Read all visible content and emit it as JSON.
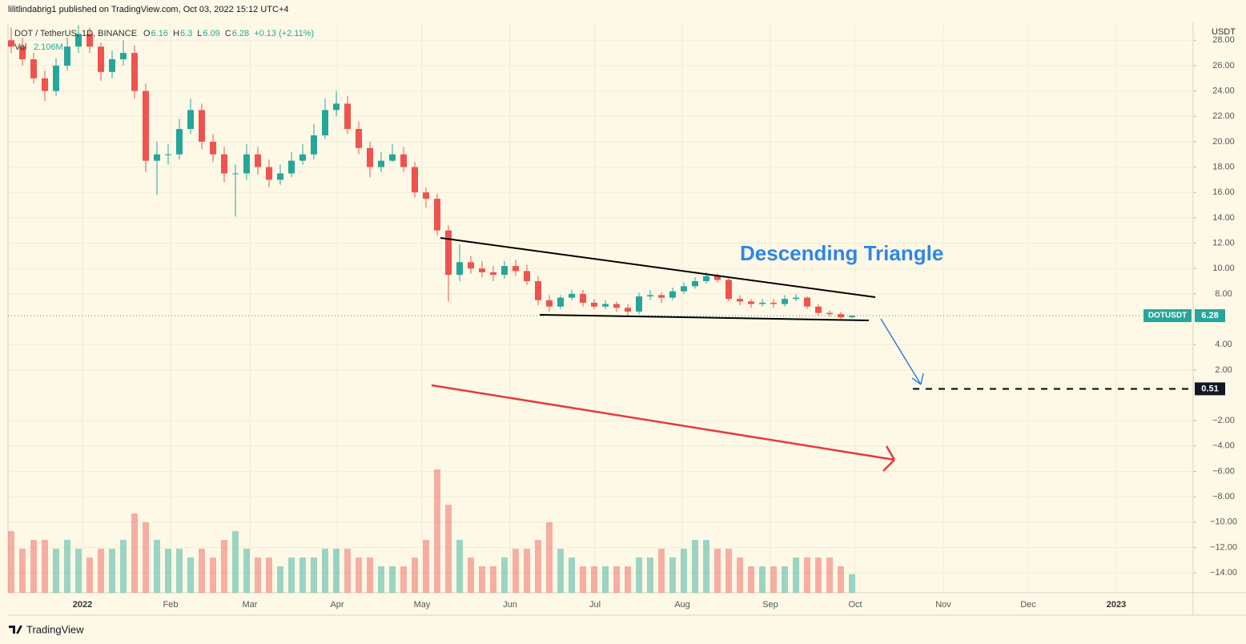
{
  "header": {
    "text": "lilitlindabrig1 published on TradingView.com, Oct 03, 2022 15:12 UTC+4"
  },
  "footer": {
    "logo": "TradingView"
  },
  "chart_data": {
    "type": "candlestick",
    "legend": {
      "symbol": "DOT / TetherUS, 1D, BINANCE",
      "letters": [
        "O",
        "H",
        "L",
        "C"
      ],
      "ohlc": [
        6.16,
        6.3,
        6.09,
        6.28
      ],
      "change": "+0.13 (+2.11%)",
      "volume_title": "Vol",
      "volume_label": "2.106M"
    },
    "axis_unit": "USDT",
    "annotation": "Descending Triangle",
    "last_price": {
      "symbol": "DOTUSDT",
      "value": 6.28
    },
    "target": 0.51,
    "up_color": "#26a69a",
    "down_color": "#ef5350",
    "x_labels": [
      "2022",
      "Feb",
      "Mar",
      "Apr",
      "May",
      "Jun",
      "Jul",
      "Aug",
      "Sep",
      "Oct",
      "Nov",
      "Dec",
      "2023"
    ],
    "ylim": [
      -15.57,
      29.28
    ],
    "yticks": [
      {
        "value": 28,
        "label": "28.00"
      },
      {
        "value": 26,
        "label": "26.00"
      },
      {
        "value": 24,
        "label": "24.00"
      },
      {
        "value": 22,
        "label": "22.00"
      },
      {
        "value": 20,
        "label": "20.00"
      },
      {
        "value": 18,
        "label": "18.00"
      },
      {
        "value": 16,
        "label": "16.00"
      },
      {
        "value": 14,
        "label": "14.00"
      },
      {
        "value": 12,
        "label": "12.00"
      },
      {
        "value": 10,
        "label": "10.00"
      },
      {
        "value": 8,
        "label": "8.00"
      },
      {
        "value": 4,
        "label": "4.00"
      },
      {
        "value": 2,
        "label": "2.00"
      },
      {
        "value": -2,
        "label": "−2.00"
      },
      {
        "value": -4,
        "label": "−4.00"
      },
      {
        "value": -6,
        "label": "−6.00"
      },
      {
        "value": -8,
        "label": "−8.00"
      },
      {
        "value": -10,
        "label": "−10.00"
      },
      {
        "value": -12,
        "label": "−12.00"
      },
      {
        "value": -14,
        "label": "−14.00"
      }
    ],
    "open": [
      28.0,
      27.5,
      26.5,
      25.0,
      24.0,
      26.0,
      27.5,
      28.5,
      27.5,
      25.5,
      26.5,
      27.0,
      24.0,
      18.5,
      19.0,
      19.0,
      21.0,
      22.5,
      20.0,
      19.0,
      17.5,
      17.5,
      19.0,
      18.0,
      17.0,
      17.5,
      18.5,
      19.0,
      20.5,
      22.5,
      23.0,
      21.0,
      19.5,
      18.0,
      18.5,
      19.0,
      18.0,
      16.0,
      15.5,
      13.0,
      9.5,
      10.5,
      10.0,
      9.7,
      9.5,
      10.2,
      9.8,
      9.0,
      7.5,
      7.0,
      7.7,
      8.0,
      7.3,
      7.0,
      7.2,
      6.9,
      6.6,
      7.8,
      7.9,
      7.7,
      8.2,
      8.6,
      9.0,
      9.4,
      9.1,
      7.6,
      7.4,
      7.2,
      7.3,
      7.2,
      7.6,
      7.7,
      7.0,
      6.5,
      6.4,
      6.16
    ],
    "high": [
      29.0,
      28.2,
      27.0,
      25.6,
      26.6,
      28.2,
      29.2,
      29.0,
      27.8,
      27.2,
      28.0,
      27.6,
      24.6,
      20.0,
      19.8,
      21.8,
      23.4,
      23.0,
      20.6,
      19.6,
      18.2,
      19.8,
      19.6,
      18.6,
      18.2,
      19.2,
      19.8,
      21.4,
      23.4,
      24.0,
      23.6,
      21.6,
      20.0,
      19.2,
      19.8,
      19.6,
      18.4,
      16.4,
      15.9,
      13.4,
      11.9,
      11.0,
      10.6,
      10.2,
      10.6,
      10.7,
      10.3,
      9.4,
      7.9,
      7.9,
      8.3,
      8.3,
      7.6,
      7.5,
      7.4,
      7.2,
      8.1,
      8.3,
      8.1,
      8.5,
      8.9,
      9.3,
      9.7,
      9.6,
      9.3,
      7.9,
      7.6,
      7.6,
      7.6,
      7.9,
      8.0,
      7.8,
      7.2,
      6.7,
      6.6,
      6.3
    ],
    "low": [
      27.0,
      26.0,
      24.6,
      23.2,
      23.6,
      25.6,
      27.0,
      27.0,
      24.8,
      25.0,
      26.0,
      23.4,
      17.6,
      15.8,
      18.2,
      18.6,
      20.6,
      19.4,
      18.4,
      16.8,
      14.1,
      17.0,
      17.4,
      16.4,
      16.6,
      17.2,
      18.2,
      18.6,
      20.2,
      22.0,
      20.6,
      19.0,
      17.2,
      17.6,
      18.4,
      17.6,
      15.6,
      14.8,
      12.6,
      7.4,
      9.0,
      9.6,
      9.3,
      9.0,
      9.2,
      9.4,
      8.7,
      7.1,
      6.6,
      6.8,
      7.5,
      7.0,
      6.8,
      6.8,
      6.6,
      6.2,
      6.4,
      7.5,
      7.3,
      7.5,
      8.0,
      8.4,
      8.8,
      8.9,
      7.4,
      7.1,
      6.9,
      7.0,
      6.9,
      7.0,
      7.4,
      6.8,
      6.3,
      6.2,
      6.05,
      6.09
    ],
    "close": [
      27.5,
      26.5,
      25.0,
      24.0,
      26.0,
      27.5,
      28.5,
      27.5,
      25.5,
      26.5,
      27.0,
      24.0,
      18.5,
      19.0,
      19.0,
      21.0,
      22.5,
      20.0,
      19.0,
      17.5,
      17.5,
      19.0,
      18.0,
      17.0,
      17.5,
      18.5,
      19.0,
      20.5,
      22.5,
      23.0,
      21.0,
      19.5,
      18.0,
      18.5,
      19.0,
      18.0,
      16.0,
      15.5,
      13.0,
      9.5,
      10.5,
      10.0,
      9.7,
      9.5,
      10.2,
      9.8,
      9.0,
      7.5,
      7.0,
      7.7,
      8.0,
      7.3,
      7.0,
      7.2,
      6.9,
      6.6,
      7.8,
      7.9,
      7.7,
      8.2,
      8.6,
      9.0,
      9.4,
      9.1,
      7.6,
      7.4,
      7.2,
      7.3,
      7.2,
      7.6,
      7.7,
      7.0,
      6.5,
      6.4,
      6.15,
      6.28
    ],
    "volume": [
      7,
      5,
      6,
      6,
      5,
      6,
      5,
      4,
      5,
      5,
      6,
      9,
      8,
      6,
      5,
      5,
      4,
      5,
      4,
      6,
      7,
      5,
      4,
      4,
      3,
      4,
      4,
      4,
      5,
      5,
      5,
      4,
      4,
      3,
      3,
      3,
      4,
      6,
      14,
      10,
      6,
      4,
      3,
      3,
      4,
      5,
      5,
      6,
      8,
      5,
      4,
      3,
      3,
      3,
      3,
      3,
      4,
      4,
      5,
      4,
      5,
      6,
      6,
      5,
      5,
      4,
      3,
      3,
      3,
      3,
      4,
      4,
      4,
      4,
      3,
      2.106
    ]
  }
}
